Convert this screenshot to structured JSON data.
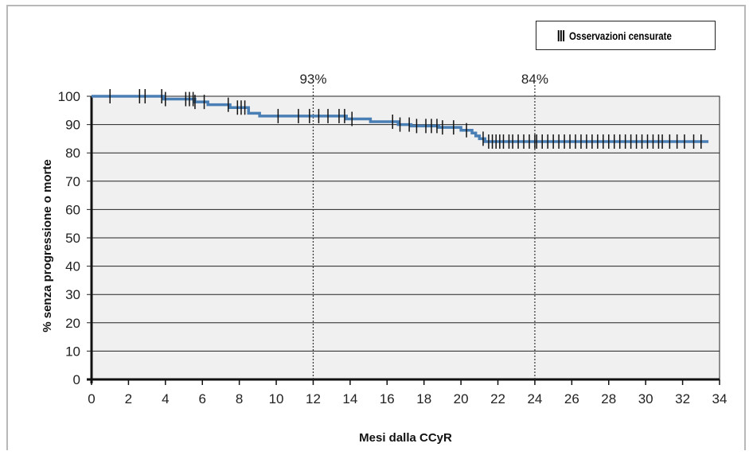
{
  "chart_data": {
    "type": "line",
    "subtype": "kaplan-meier",
    "title": "",
    "xlabel": "Mesi dalla CCyR",
    "ylabel": "% senza progressione o morte",
    "xlim": [
      0,
      34
    ],
    "ylim": [
      0,
      100
    ],
    "x_ticks": [
      0,
      2,
      4,
      6,
      8,
      10,
      12,
      14,
      16,
      18,
      20,
      22,
      24,
      26,
      28,
      30,
      32,
      34
    ],
    "y_ticks": [
      0,
      10,
      20,
      30,
      40,
      50,
      60,
      70,
      80,
      90,
      100
    ],
    "grid": "horizontal",
    "legend": {
      "label": "Osservazioni censurate",
      "symbol": "|||",
      "position": "top-right"
    },
    "annotations": [
      {
        "x": 12,
        "text": "93%"
      },
      {
        "x": 24,
        "text": "84%"
      }
    ],
    "series": [
      {
        "color": "#4a7fb5",
        "steps": [
          [
            0,
            100
          ],
          [
            3.9,
            99
          ],
          [
            5.6,
            98
          ],
          [
            6.3,
            97
          ],
          [
            7.5,
            96
          ],
          [
            8.5,
            94
          ],
          [
            9.1,
            93
          ],
          [
            13.8,
            92
          ],
          [
            15.1,
            91
          ],
          [
            16.6,
            90
          ],
          [
            17.3,
            89.5
          ],
          [
            18.8,
            89
          ],
          [
            20.0,
            88
          ],
          [
            20.6,
            87
          ],
          [
            20.8,
            86
          ],
          [
            21.0,
            85
          ],
          [
            21.3,
            84
          ],
          [
            33.4,
            84
          ]
        ],
        "censored_x": [
          1.0,
          2.6,
          2.9,
          3.8,
          4.0,
          5.1,
          5.3,
          5.5,
          5.6,
          6.1,
          7.4,
          7.9,
          8.1,
          8.3,
          10.1,
          11.2,
          11.8,
          12.3,
          12.8,
          13.4,
          13.7,
          14.1,
          16.3,
          16.7,
          17.2,
          17.6,
          18.1,
          18.4,
          18.7,
          19.0,
          19.6,
          20.3,
          21.2,
          21.5,
          21.7,
          21.9,
          22.1,
          22.3,
          22.6,
          22.8,
          23.1,
          23.4,
          23.7,
          24.0,
          24.1,
          24.4,
          24.7,
          25.0,
          25.3,
          25.6,
          25.9,
          26.2,
          26.5,
          26.8,
          27.1,
          27.4,
          27.7,
          28.0,
          28.3,
          28.6,
          28.9,
          29.2,
          29.5,
          29.8,
          30.1,
          30.4,
          30.7,
          30.9,
          31.3,
          31.7,
          32.1,
          32.6,
          33.0
        ]
      }
    ]
  }
}
